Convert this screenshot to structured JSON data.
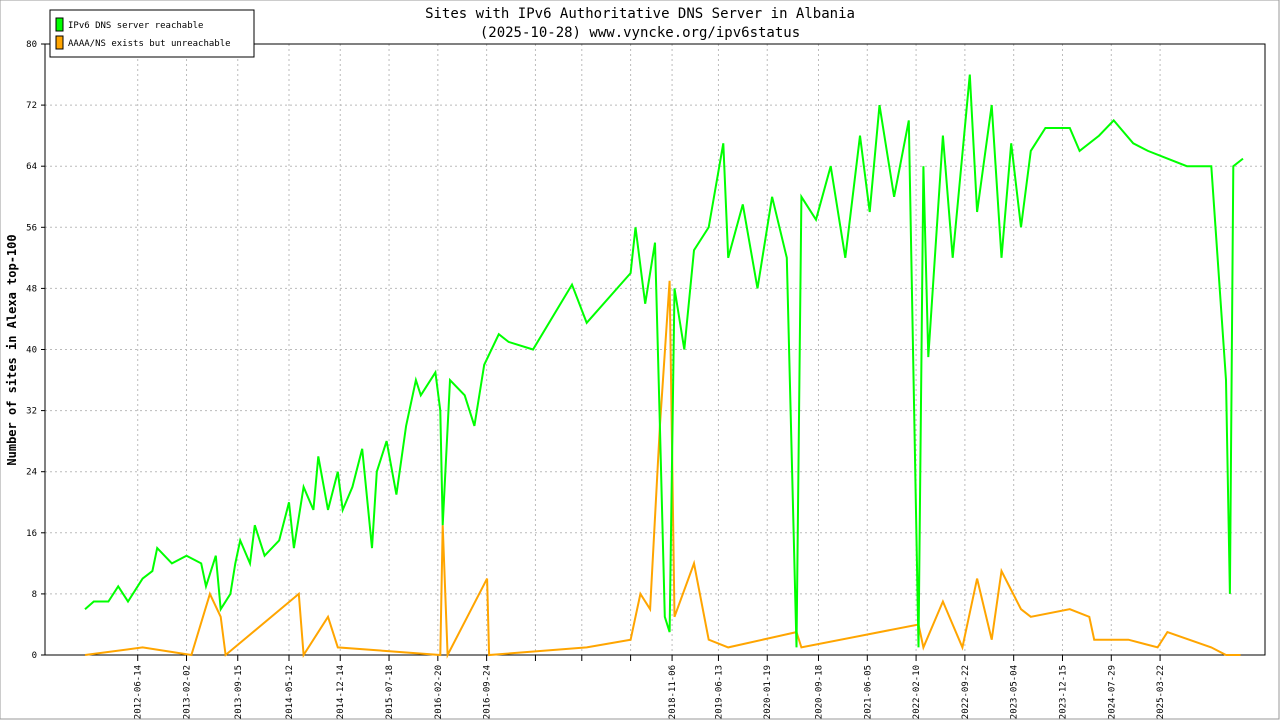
{
  "chart_data": {
    "type": "line",
    "title": "Sites with IPv6 Authoritative DNS Server in Albania",
    "subtitle": "(2025-10-28) www.vyncke.org/ipv6status",
    "y_label": "Number of sites in Alexa top-100",
    "xlim": [
      0,
      25
    ],
    "ylim": [
      0,
      80
    ],
    "yticks": [
      0,
      8,
      16,
      24,
      32,
      40,
      48,
      56,
      64,
      72,
      80
    ],
    "grid": true,
    "legend": "upper left",
    "xticks": [
      {
        "value": 1.9,
        "label": "2012-06-14"
      },
      {
        "value": 2.9,
        "label": "2013-02-02"
      },
      {
        "value": 3.95,
        "label": "2013-09-15"
      },
      {
        "value": 5.0,
        "label": "2014-05-12"
      },
      {
        "value": 6.05,
        "label": "2014-12-14"
      },
      {
        "value": 7.05,
        "label": "2015-07-18"
      },
      {
        "value": 8.05,
        "label": "2016-02-20"
      },
      {
        "value": 9.05,
        "label": "2016-09-24"
      },
      {
        "value": 10.05,
        "label": null
      },
      {
        "value": 11.0,
        "label": null
      },
      {
        "value": 12.0,
        "label": null
      },
      {
        "value": 12.85,
        "label": "2018-11-06"
      },
      {
        "value": 13.8,
        "label": "2019-06-13"
      },
      {
        "value": 14.8,
        "label": "2020-01-19"
      },
      {
        "value": 15.85,
        "label": "2020-09-18"
      },
      {
        "value": 16.85,
        "label": "2021-06-05"
      },
      {
        "value": 17.85,
        "label": "2022-02-10"
      },
      {
        "value": 18.85,
        "label": "2022-09-22"
      },
      {
        "value": 19.85,
        "label": "2023-05-04"
      },
      {
        "value": 20.85,
        "label": "2023-12-15"
      },
      {
        "value": 21.85,
        "label": "2024-07-29"
      },
      {
        "value": 22.85,
        "label": "2025-03-22"
      }
    ],
    "series": [
      {
        "name": "IPv6 DNS server reachable",
        "color": "#00ff00",
        "x": [
          0.82,
          1.0,
          1.3,
          1.5,
          1.7,
          2.0,
          2.2,
          2.3,
          2.6,
          2.9,
          3.2,
          3.3,
          3.5,
          3.6,
          3.8,
          3.9,
          4.0,
          4.2,
          4.3,
          4.5,
          4.8,
          5.0,
          5.1,
          5.3,
          5.5,
          5.6,
          5.8,
          6.0,
          6.1,
          6.3,
          6.5,
          6.7,
          6.8,
          7.0,
          7.2,
          7.4,
          7.6,
          7.7,
          8.0,
          8.1,
          8.15,
          8.3,
          8.6,
          8.8,
          9.0,
          9.3,
          9.5,
          10.0,
          10.8,
          11.1,
          12.0,
          12.1,
          12.3,
          12.5,
          12.6,
          12.7,
          12.8,
          12.9,
          13.1,
          13.3,
          13.6,
          13.9,
          14.0,
          14.3,
          14.6,
          14.9,
          15.2,
          15.4,
          15.5,
          15.8,
          16.1,
          16.4,
          16.7,
          16.9,
          17.1,
          17.4,
          17.7,
          17.9,
          18.0,
          18.1,
          18.4,
          18.6,
          18.95,
          19.1,
          19.4,
          19.6,
          19.8,
          20.0,
          20.2,
          20.5,
          21.0,
          21.2,
          21.6,
          21.9,
          22.3,
          22.6,
          23.0,
          23.4,
          23.9,
          24.2,
          24.28,
          24.35,
          24.55
        ],
        "values": [
          6,
          7,
          7,
          9,
          7,
          10,
          11,
          14,
          12,
          13,
          12,
          9,
          13,
          6,
          8,
          12,
          15,
          12,
          17,
          13,
          15,
          20,
          14,
          22,
          19,
          26,
          19,
          24,
          19,
          22,
          27,
          14,
          24,
          28,
          21,
          30,
          36,
          34,
          37,
          32,
          17,
          36,
          34,
          30,
          38,
          42,
          41,
          40,
          48.5,
          43.5,
          50,
          56,
          46,
          54,
          30,
          5,
          3,
          48,
          40,
          53,
          56,
          67,
          52,
          59,
          48,
          60,
          52,
          1,
          60,
          57,
          64,
          52,
          68,
          58,
          72,
          60,
          70,
          1,
          64,
          39,
          68,
          52,
          76,
          58,
          72,
          52,
          67,
          56,
          66,
          69,
          69,
          66,
          68,
          70,
          67,
          66,
          65,
          64,
          64,
          36,
          8,
          64,
          65
        ]
      },
      {
        "name": "AAAA/NS exists but unreachable",
        "color": "#ffa500",
        "x": [
          0.82,
          2.0,
          3.0,
          3.38,
          3.6,
          3.7,
          5.2,
          5.3,
          5.8,
          6.0,
          8.1,
          8.15,
          8.25,
          9.06,
          9.1,
          11.1,
          12.0,
          12.2,
          12.4,
          12.6,
          12.8,
          12.9,
          13.3,
          13.6,
          14.0,
          15.4,
          15.5,
          17.9,
          18.0,
          18.4,
          18.8,
          19.1,
          19.4,
          19.6,
          20.0,
          20.2,
          21.0,
          21.4,
          21.5,
          22.2,
          22.8,
          23.0,
          23.9,
          24.2,
          24.5
        ],
        "values": [
          0,
          1,
          0,
          8,
          5,
          0,
          8,
          0,
          5,
          1,
          0,
          17,
          0,
          10,
          0,
          1,
          2,
          8,
          6,
          30,
          49,
          5,
          12,
          2,
          1,
          3,
          1,
          4,
          1,
          7,
          1,
          10,
          2,
          11,
          6,
          5,
          6,
          5,
          2,
          2,
          1,
          3,
          1,
          0,
          0
        ]
      }
    ]
  }
}
